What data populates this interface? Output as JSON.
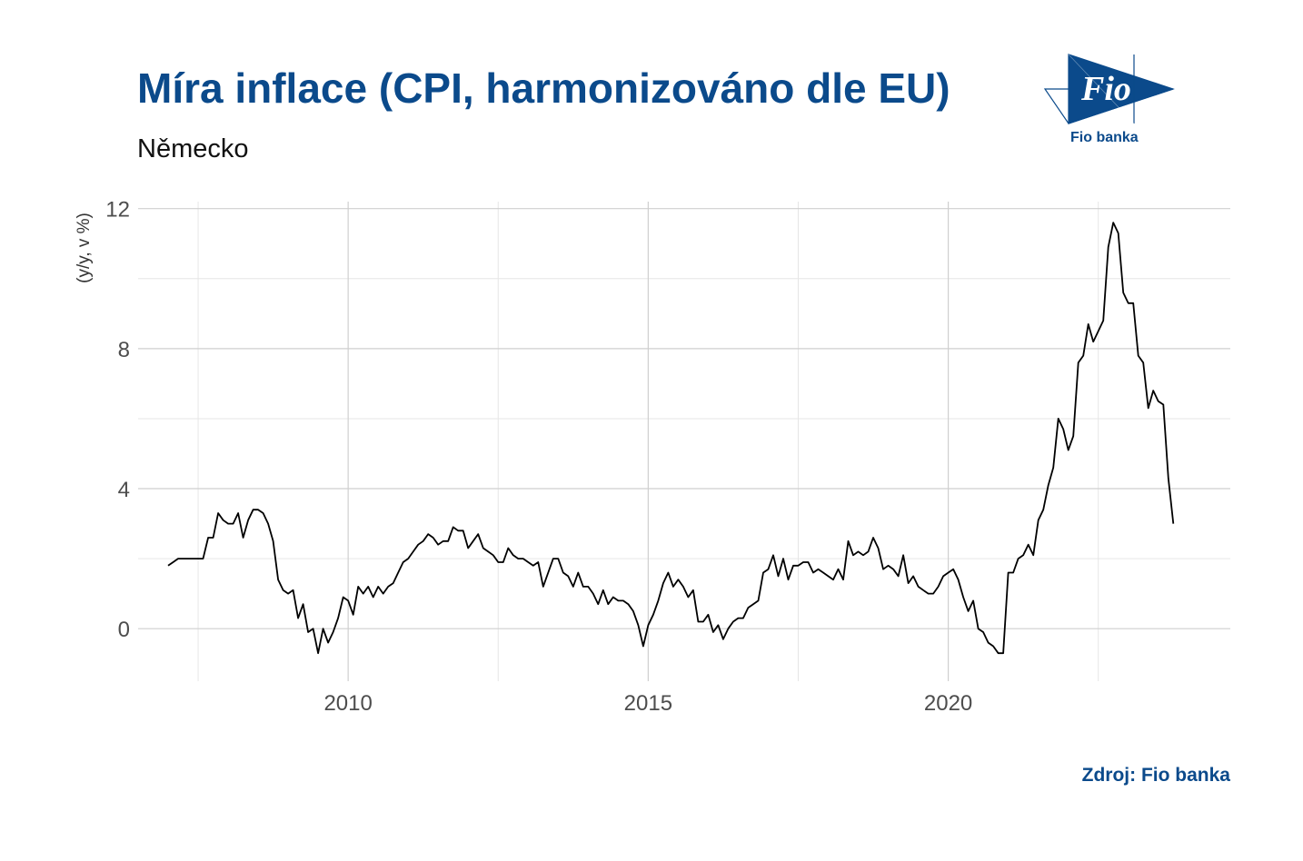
{
  "title": "Míra inflace (CPI, harmonizováno dle EU)",
  "subtitle": "Německo",
  "source": "Zdroj: Fio banka",
  "logo": {
    "mark_text": "Fio",
    "name": "Fio banka",
    "color": "#0b4a8b"
  },
  "chart_data": {
    "type": "line",
    "ylabel": "(y/y, v %)",
    "xlim": [
      2006.5,
      2024.7
    ],
    "ylim": [
      -1.5,
      12.2
    ],
    "x_ticks": [
      2010,
      2015,
      2020
    ],
    "x_tick_labels": [
      "2010",
      "2015",
      "2020"
    ],
    "y_ticks": [
      0,
      4,
      8,
      12
    ],
    "y_tick_labels": [
      "0",
      "4",
      "8",
      "12"
    ],
    "grid": true,
    "line_color": "#000000",
    "series": [
      {
        "start": 2007.0,
        "step": 0.0833333,
        "values": [
          1.8,
          1.9,
          2.0,
          2.0,
          2.0,
          2.0,
          2.0,
          2.0,
          2.6,
          2.6,
          3.3,
          3.1,
          3.0,
          3.0,
          3.3,
          2.6,
          3.1,
          3.4,
          3.4,
          3.3,
          3.0,
          2.5,
          1.4,
          1.1,
          1.0,
          1.1,
          0.3,
          0.7,
          -0.1,
          0.0,
          -0.7,
          0.0,
          -0.4,
          -0.1,
          0.3,
          0.9,
          0.8,
          0.4,
          1.2,
          1.0,
          1.2,
          0.9,
          1.2,
          1.0,
          1.2,
          1.3,
          1.6,
          1.9,
          2.0,
          2.2,
          2.4,
          2.5,
          2.7,
          2.6,
          2.4,
          2.5,
          2.5,
          2.9,
          2.8,
          2.8,
          2.3,
          2.5,
          2.7,
          2.3,
          2.2,
          2.1,
          1.9,
          1.9,
          2.3,
          2.1,
          2.0,
          2.0,
          1.9,
          1.8,
          1.9,
          1.2,
          1.6,
          2.0,
          2.0,
          1.6,
          1.5,
          1.2,
          1.6,
          1.2,
          1.2,
          1.0,
          0.7,
          1.1,
          0.7,
          0.9,
          0.8,
          0.8,
          0.7,
          0.5,
          0.1,
          -0.5,
          0.1,
          0.4,
          0.8,
          1.3,
          1.6,
          1.2,
          1.4,
          1.2,
          0.9,
          1.1,
          0.2,
          0.2,
          0.4,
          -0.1,
          0.1,
          -0.3,
          0.0,
          0.2,
          0.3,
          0.3,
          0.6,
          0.7,
          0.8,
          1.6,
          1.7,
          2.1,
          1.5,
          2.0,
          1.4,
          1.8,
          1.8,
          1.9,
          1.9,
          1.6,
          1.7,
          1.6,
          1.5,
          1.4,
          1.7,
          1.4,
          2.5,
          2.1,
          2.2,
          2.1,
          2.2,
          2.6,
          2.3,
          1.7,
          1.8,
          1.7,
          1.5,
          2.1,
          1.3,
          1.5,
          1.2,
          1.1,
          1.0,
          1.0,
          1.2,
          1.5,
          1.6,
          1.7,
          1.4,
          0.9,
          0.5,
          0.8,
          0.0,
          -0.1,
          -0.4,
          -0.5,
          -0.7,
          -0.7,
          1.6,
          1.6,
          2.0,
          2.1,
          2.4,
          2.1,
          3.1,
          3.4,
          4.1,
          4.6,
          6.0,
          5.7,
          5.1,
          5.5,
          7.6,
          7.8,
          8.7,
          8.2,
          8.5,
          8.8,
          10.9,
          11.6,
          11.3,
          9.6,
          9.3,
          9.3,
          7.8,
          7.6,
          6.3,
          6.8,
          6.5,
          6.4,
          4.3,
          3.0
        ]
      }
    ]
  }
}
